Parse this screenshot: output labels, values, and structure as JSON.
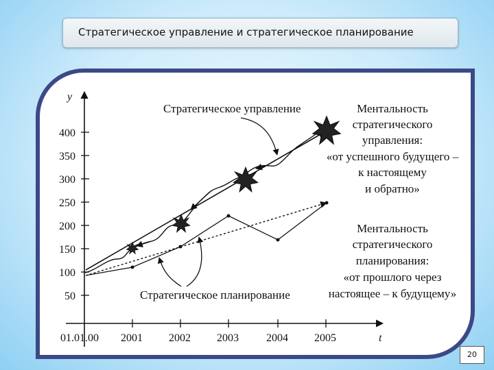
{
  "slide": {
    "title": "Стратегическое управление и стратегическое планирование",
    "page_number": "20"
  },
  "diagram": {
    "axis": {
      "y_label": "y",
      "x_label": "t",
      "origin_label": "01.01.00",
      "y_ticks": [
        "400",
        "350",
        "300",
        "250",
        "200",
        "150",
        "100",
        "50"
      ],
      "x_ticks": [
        "2001",
        "2002",
        "2003",
        "2004",
        "2005"
      ]
    },
    "labels": {
      "management": "Стратегическое управление",
      "planning": "Стратегическое планирование",
      "management_mentality": [
        "Ментальность",
        "стратегического",
        "управления:",
        "«от успешного будущего –",
        "к настоящему",
        "и обратно»"
      ],
      "planning_mentality": [
        "Ментальность",
        "стратегического",
        "планирования:",
        "«от прошлого через",
        "настоящее – к будущему»"
      ]
    },
    "icons": [
      "star-burst-icon"
    ]
  }
}
